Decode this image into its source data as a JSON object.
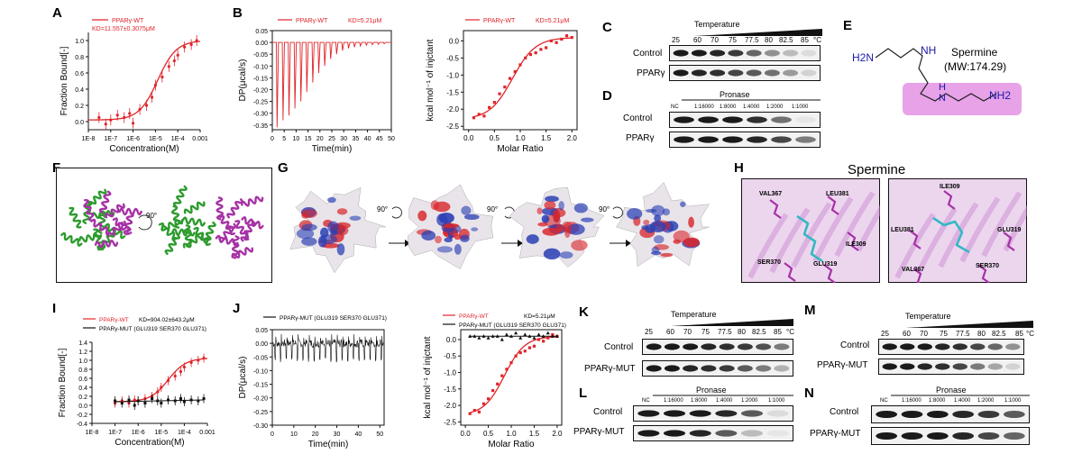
{
  "letters": {
    "A": "A",
    "B": "B",
    "C": "C",
    "D": "D",
    "E": "E",
    "F": "F",
    "G": "G",
    "H": "H",
    "I": "I",
    "J": "J",
    "K": "K",
    "L": "L",
    "M": "M",
    "N": "N"
  },
  "colors": {
    "red": "#e0242a",
    "black": "#111111",
    "magenta": "#a631a6",
    "green": "#2d9b2d",
    "molbox": "#e28be2",
    "cyan": "#34b8c4"
  },
  "panelA": {
    "legend": "PPARγ-WT",
    "kd": "KD=11.557±0.3075μM",
    "ylabel": "Fraction Bound[-]",
    "xlabel": "Concentration(M)",
    "xticks": [
      "1E-8",
      "1E-7",
      "1E-6",
      "1E-5",
      "1E-4",
      "0.001"
    ],
    "yticks": [
      "0.0",
      "0.2",
      "0.4",
      "0.6",
      "0.8",
      "1.0"
    ]
  },
  "panelB": {
    "legend": "PPARγ-WT",
    "kd": "KD=5.21μM",
    "ylabel": "DP(μcal/s)",
    "xlabel": "Time(min)",
    "yticks": [
      "0.05",
      "0.00",
      "-0.05",
      "-0.10",
      "-0.15",
      "-0.20",
      "-0.25",
      "-0.30",
      "-0.35"
    ],
    "xticks": [
      "0",
      "5",
      "10",
      "15",
      "20",
      "25",
      "30",
      "35",
      "40",
      "45",
      "50"
    ],
    "legend2": "PPARγ-WT",
    "kd2": "KD=5.21μM",
    "ylabel2": "kcal mol⁻¹ of injctant",
    "xlabel2": "Molar Ratio",
    "yticks2": [
      "0.0",
      "-0.5",
      "-1.0",
      "-1.5",
      "-2.0",
      "-2.5"
    ],
    "xticks2": [
      "0.0",
      "0.5",
      "1.0",
      "1.5",
      "2.0"
    ]
  },
  "panelC": {
    "title": "Temperature",
    "temps": [
      "25",
      "60",
      "70",
      "75",
      "77.5",
      "80",
      "82.5",
      "85",
      "°C"
    ],
    "rows": [
      "Control",
      "PPARγ"
    ]
  },
  "panelD": {
    "title": "Pronase",
    "ratios": [
      "NC",
      "1:16000",
      "1:8000",
      "1:4000",
      "1:2000",
      "1:1000"
    ],
    "rows": [
      "Control",
      "PPARγ"
    ]
  },
  "panelE": {
    "name": "Spermine",
    "mw": "(MW:174.29)",
    "h2n": "H2N",
    "nh": "NH",
    "hn": "H",
    "n": "N",
    "nh2": "NH2"
  },
  "panelF": {
    "angle": "90°"
  },
  "panelG": {
    "angle": "90°"
  },
  "panelH": {
    "title": "Spermine",
    "left": [
      "VAL367",
      "LEU381",
      "ILE309",
      "SER370",
      "GLU319"
    ],
    "right": [
      "ILE309",
      "LEU381",
      "GLU319",
      "SER370",
      "VAL367"
    ]
  },
  "panelI": {
    "legendWT": "PPARγ-WT",
    "kd": "KD=904.02±643.2μM",
    "legendMUT": "PPARγ-MUT (GLU319 SER370 GLU371)",
    "ylabel": "Fraction Bound[-]",
    "xlabel": "Concentration(M)",
    "xticks": [
      "1E-8",
      "1E-7",
      "1E-6",
      "1E-5",
      "1E-4",
      "0.001"
    ],
    "yticks": [
      "1.4",
      "1.2",
      "1.0",
      "0.8",
      "0.6",
      "0.4",
      "0.2",
      "0.0",
      "-0.2",
      "-0.4"
    ]
  },
  "panelJ": {
    "legend": "PPARγ-MUT (GLU319 SER370 GLU371)",
    "ylabel": "DP(μcal/s)",
    "xlabel": "Time(min)",
    "yticks": [
      "0.05",
      "0.00",
      "-0.05",
      "-0.10",
      "-0.15",
      "-0.20",
      "-0.25",
      "-0.30"
    ],
    "xticks": [
      "0",
      "10",
      "20",
      "30",
      "40",
      "50"
    ],
    "legendWT2": "PPARγ-WT",
    "kd2": "KD=5.21μM",
    "legendMUT2": "PPARγ-MUT (GLU319 SER370 GLU371)",
    "ylabel2": "kcal mol⁻¹ of injctant",
    "xlabel2": "Molar Ratio",
    "yticks2": [
      "0.0",
      "-0.5",
      "-1.0",
      "-1.5",
      "-2.0",
      "-2.5"
    ],
    "xticks2": [
      "0.0",
      "0.5",
      "1.0",
      "1.5",
      "2.0"
    ]
  },
  "panelK": {
    "title": "Temperature",
    "temps": [
      "25",
      "60",
      "70",
      "75",
      "77.5",
      "80",
      "82.5",
      "85",
      "°C"
    ],
    "rows": [
      "Control",
      "PPARγ-MUT"
    ]
  },
  "panelL": {
    "title": "Pronase",
    "ratios": [
      "NC",
      "1:16000",
      "1:8000",
      "1:4000",
      "1:2000",
      "1:1000"
    ],
    "rows": [
      "Control",
      "PPARγ-MUT"
    ]
  },
  "panelM": {
    "title": "Temperature",
    "temps": [
      "25",
      "60",
      "70",
      "75",
      "77.5",
      "80",
      "82.5",
      "85",
      "°C"
    ],
    "rows": [
      "Control",
      "PPARγ-MUT"
    ]
  },
  "panelN": {
    "title": "Pronase",
    "ratios": [
      "NC",
      "1:16000",
      "1:8000",
      "1:4000",
      "1:2000",
      "1:1000"
    ],
    "rows": [
      "Control",
      "PPARγ-MUT"
    ]
  },
  "chart_data": [
    {
      "id": "A",
      "type": "scatter",
      "title": "",
      "xlabel": "Concentration(M)",
      "ylabel": "Fraction Bound[-]",
      "xscale": "log",
      "xlim": [
        1e-08,
        0.001
      ],
      "ylim": [
        -0.1,
        1.1
      ],
      "series": [
        {
          "name": "PPARγ-WT",
          "x": [
            3e-08,
            6e-08,
            1e-07,
            2e-07,
            4e-07,
            7e-07,
            1e-06,
            2e-06,
            4e-06,
            7e-06,
            1e-05,
            2e-05,
            4e-05,
            7e-05,
            0.0001,
            0.0002,
            0.0004,
            0.0007
          ],
          "y": [
            0.05,
            -0.03,
            0.02,
            0.08,
            0.05,
            0.1,
            -0.02,
            0.15,
            0.2,
            0.3,
            0.45,
            0.55,
            0.68,
            0.75,
            0.82,
            0.92,
            0.95,
            1.0
          ]
        }
      ]
    },
    {
      "id": "B-raw",
      "type": "line",
      "xlabel": "Time(min)",
      "ylabel": "DP(μcal/s)",
      "xlim": [
        0,
        50
      ],
      "ylim": [
        -0.37,
        0.05
      ],
      "peaks": {
        "times": [
          2,
          4.5,
          7,
          9.5,
          12,
          14.5,
          17,
          19.5,
          22,
          24.5,
          27,
          29.5,
          32,
          34.5,
          37,
          39.5,
          42,
          44.5,
          47
        ],
        "depths": [
          -0.36,
          -0.33,
          -0.31,
          -0.28,
          -0.25,
          -0.21,
          -0.17,
          -0.13,
          -0.1,
          -0.07,
          -0.05,
          -0.035,
          -0.025,
          -0.02,
          -0.015,
          -0.012,
          -0.01,
          -0.008,
          -0.006
        ]
      }
    },
    {
      "id": "B-iso",
      "type": "scatter",
      "xlabel": "Molar Ratio",
      "ylabel": "kcal mol⁻¹ of injctant",
      "xlim": [
        -0.1,
        2.1
      ],
      "ylim": [
        -2.6,
        0.3
      ],
      "series": [
        {
          "name": "PPARγ-WT",
          "x": [
            0.1,
            0.2,
            0.3,
            0.4,
            0.5,
            0.6,
            0.7,
            0.8,
            0.9,
            1.0,
            1.1,
            1.2,
            1.3,
            1.4,
            1.5,
            1.6,
            1.7,
            1.8,
            1.9,
            2.0
          ],
          "y": [
            -2.25,
            -2.15,
            -2.2,
            -1.95,
            -1.8,
            -1.55,
            -1.35,
            -1.1,
            -0.9,
            -0.7,
            -0.5,
            -0.4,
            -0.35,
            -0.25,
            -0.2,
            0.0,
            -0.05,
            0.05,
            0.15,
            0.1
          ]
        }
      ]
    },
    {
      "id": "I",
      "type": "scatter",
      "xlabel": "Concentration(M)",
      "ylabel": "Fraction Bound[-]",
      "xscale": "log",
      "xlim": [
        1e-08,
        0.001
      ],
      "ylim": [
        -0.4,
        1.4
      ],
      "series": [
        {
          "name": "PPARγ-WT",
          "x": [
            1e-07,
            2e-07,
            4e-07,
            7e-07,
            1e-06,
            2e-06,
            4e-06,
            7e-06,
            1e-05,
            2e-05,
            4e-05,
            7e-05,
            0.0001,
            0.0002,
            0.0004,
            0.0007
          ],
          "y": [
            0.05,
            0.1,
            0.05,
            0.12,
            0.1,
            0.15,
            0.2,
            0.3,
            0.4,
            0.55,
            0.65,
            0.75,
            0.85,
            0.95,
            1.0,
            1.05
          ]
        },
        {
          "name": "PPARγ-MUT (GLU319 SER370 GLU371)",
          "x": [
            1e-07,
            2e-07,
            4e-07,
            7e-07,
            1e-06,
            2e-06,
            4e-06,
            7e-06,
            1e-05,
            2e-05,
            4e-05,
            7e-05,
            0.0001,
            0.0002,
            0.0004,
            0.0007
          ],
          "y": [
            0.1,
            0.05,
            0.12,
            0.0,
            0.1,
            0.05,
            0.15,
            0.1,
            0.05,
            0.12,
            0.1,
            0.15,
            0.08,
            0.12,
            0.1,
            0.15
          ]
        }
      ]
    },
    {
      "id": "J-raw",
      "type": "line",
      "xlabel": "Time(min)",
      "ylabel": "DP(μcal/s)",
      "xlim": [
        0,
        52
      ],
      "ylim": [
        -0.3,
        0.05
      ],
      "series": [
        {
          "name": "PPARγ-MUT (GLU319 SER370 GLU371)",
          "noise_band": [
            -0.05,
            0.02
          ]
        }
      ]
    },
    {
      "id": "J-iso",
      "type": "scatter",
      "xlabel": "Molar Ratio",
      "ylabel": "kcal mol⁻¹ of injctant",
      "xlim": [
        -0.1,
        2.1
      ],
      "ylim": [
        -2.6,
        0.3
      ],
      "series": [
        {
          "name": "PPARγ-WT",
          "x": [
            0.1,
            0.2,
            0.3,
            0.4,
            0.5,
            0.6,
            0.7,
            0.8,
            0.9,
            1.0,
            1.1,
            1.2,
            1.3,
            1.4,
            1.5,
            1.6,
            1.7,
            1.8,
            1.9,
            2.0
          ],
          "y": [
            -2.25,
            -2.15,
            -2.2,
            -1.95,
            -1.8,
            -1.55,
            -1.35,
            -1.1,
            -0.9,
            -0.7,
            -0.5,
            -0.4,
            -0.35,
            -0.25,
            -0.2,
            0.0,
            -0.05,
            0.05,
            0.15,
            0.1
          ]
        },
        {
          "name": "PPARγ-MUT (GLU319 SER370 GLU371)",
          "x": [
            0.1,
            0.2,
            0.3,
            0.4,
            0.5,
            0.6,
            0.7,
            0.8,
            0.9,
            1.0,
            1.1,
            1.2,
            1.3,
            1.4,
            1.5,
            1.6,
            1.7,
            1.8,
            1.9,
            2.0
          ],
          "y": [
            0.1,
            0.1,
            0.05,
            0.1,
            0.05,
            0.1,
            0.1,
            0.0,
            0.15,
            0.1,
            0.2,
            0.05,
            0.15,
            0.1,
            0.05,
            0.15,
            0.1,
            0.2,
            0.1,
            0.1
          ]
        }
      ]
    }
  ]
}
